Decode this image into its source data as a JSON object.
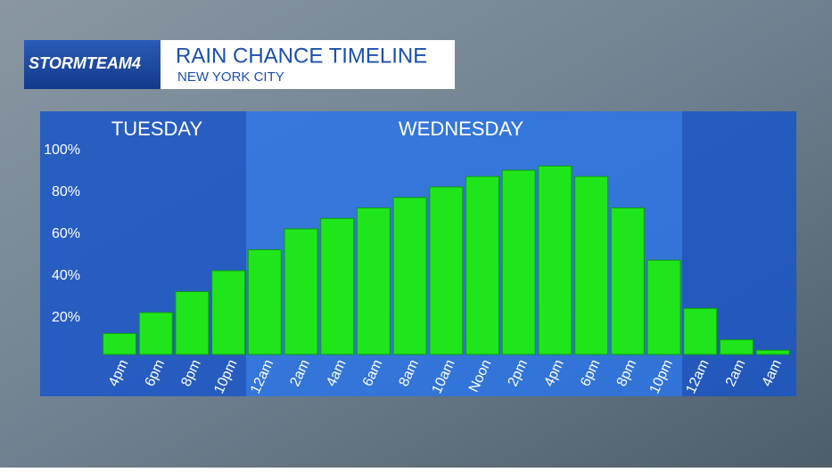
{
  "chart_data": {
    "type": "bar",
    "brand": "STORMTEAM4",
    "title": "RAIN CHANCE TIMELINE",
    "subtitle": "NEW YORK CITY",
    "day_labels": [
      "TUESDAY",
      "WEDNESDAY"
    ],
    "categories": [
      "4pm",
      "6pm",
      "8pm",
      "10pm",
      "12am",
      "2am",
      "4am",
      "6am",
      "8am",
      "10am",
      "Noon",
      "2pm",
      "4pm",
      "6pm",
      "8pm",
      "10pm",
      "12am",
      "2am",
      "4am"
    ],
    "values": [
      10,
      20,
      30,
      40,
      50,
      60,
      65,
      70,
      75,
      80,
      85,
      88,
      90,
      85,
      70,
      45,
      22,
      7,
      2
    ],
    "color": "#1fe61a",
    "ylim": [
      0,
      100
    ],
    "yticks": [
      {
        "value": 20,
        "label": "20%"
      },
      {
        "value": 40,
        "label": "40%"
      },
      {
        "value": 60,
        "label": "60%"
      },
      {
        "value": 80,
        "label": "80%"
      },
      {
        "value": 100,
        "label": "100%"
      }
    ],
    "grid": false
  }
}
